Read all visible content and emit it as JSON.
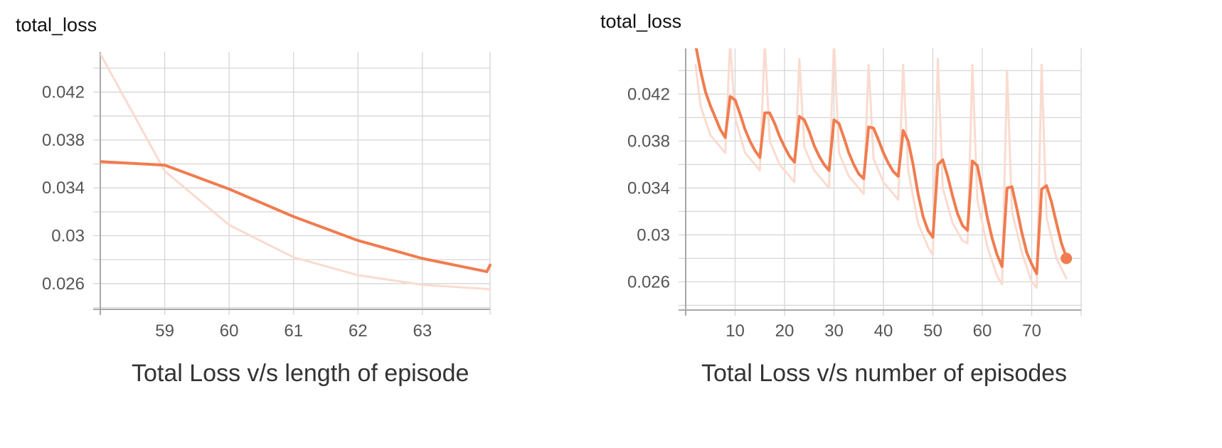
{
  "chart_data": [
    {
      "type": "line",
      "title": "total_loss",
      "caption": "Total Loss v/s length of episode",
      "xlabel": "",
      "ylabel": "",
      "xlim": [
        58,
        64.05
      ],
      "ylim": [
        0.02385,
        0.04536
      ],
      "x_ticks": [
        59,
        60,
        61,
        62,
        63
      ],
      "x_tick_labels": [
        "59",
        "60",
        "61",
        "62",
        "63"
      ],
      "y_ticks": [
        0.026,
        0.03,
        0.034,
        0.038,
        0.042
      ],
      "y_tick_labels": [
        "0.026",
        "0.03",
        "0.034",
        "0.038",
        "0.042"
      ],
      "grid": true,
      "colors": {
        "smoothed": "#f07c4f",
        "raw": "#fadbd0",
        "grid": "#d6d6d6",
        "axis": "#a8a8a8"
      },
      "series": [
        {
          "role": "raw",
          "x": [
            58,
            59,
            60,
            61,
            62,
            63,
            64,
            64.05
          ],
          "y": [
            0.0452,
            0.0354,
            0.0309,
            0.0282,
            0.0267,
            0.0259,
            0.02555,
            0.0255
          ]
        },
        {
          "role": "smoothed",
          "x": [
            58,
            59,
            60,
            61,
            62,
            63,
            64,
            64.05
          ],
          "y": [
            0.0362,
            0.0359,
            0.0339,
            0.0316,
            0.0296,
            0.0281,
            0.027,
            0.02755
          ]
        }
      ]
    },
    {
      "type": "line",
      "title": "total_loss",
      "caption": "Total Loss v/s number of episodes",
      "xlabel": "",
      "ylabel": "",
      "xlim": [
        0,
        80
      ],
      "ylim": [
        0.0236,
        0.0459
      ],
      "x_ticks": [
        10,
        20,
        30,
        40,
        50,
        60,
        70
      ],
      "x_tick_labels": [
        "10",
        "20",
        "30",
        "40",
        "50",
        "60",
        "70"
      ],
      "y_ticks": [
        0.026,
        0.03,
        0.034,
        0.038,
        0.042
      ],
      "y_tick_labels": [
        "0.026",
        "0.03",
        "0.034",
        "0.038",
        "0.042"
      ],
      "grid": true,
      "colors": {
        "smoothed": "#f07c4f",
        "raw": "#fadbd0",
        "grid": "#d6d6d6",
        "axis": "#a8a8a8"
      },
      "end_marker": {
        "x": 77,
        "y": 0.028
      },
      "series": [
        {
          "role": "raw",
          "x": [
            2,
            3,
            5,
            7,
            8,
            9,
            10,
            12,
            14,
            15,
            16,
            17,
            19,
            21,
            22,
            23,
            24,
            26,
            28,
            29,
            30,
            31,
            33,
            35,
            36,
            37,
            38,
            40,
            42,
            43,
            44,
            45,
            47,
            49,
            50,
            51,
            52,
            54,
            56,
            57,
            58,
            59,
            61,
            63,
            64,
            65,
            66,
            68,
            70,
            71,
            72,
            73,
            75,
            77
          ],
          "y": [
            0.0445,
            0.041,
            0.0385,
            0.0375,
            0.037,
            0.0465,
            0.04,
            0.037,
            0.036,
            0.0355,
            0.0465,
            0.038,
            0.036,
            0.035,
            0.0345,
            0.045,
            0.0375,
            0.0355,
            0.0345,
            0.034,
            0.0465,
            0.037,
            0.035,
            0.034,
            0.0335,
            0.0445,
            0.0365,
            0.0345,
            0.0335,
            0.033,
            0.0445,
            0.0355,
            0.031,
            0.029,
            0.0283,
            0.045,
            0.034,
            0.031,
            0.0295,
            0.0293,
            0.0445,
            0.033,
            0.029,
            0.0265,
            0.0258,
            0.044,
            0.032,
            0.0285,
            0.026,
            0.0255,
            0.0445,
            0.0315,
            0.028,
            0.0263
          ]
        },
        {
          "role": "smoothed",
          "x": [
            2,
            3,
            4,
            5,
            6,
            7,
            8,
            9,
            10,
            11,
            12,
            13,
            14,
            15,
            16,
            17,
            18,
            19,
            20,
            21,
            22,
            23,
            24,
            25,
            26,
            27,
            28,
            29,
            30,
            31,
            32,
            33,
            34,
            35,
            36,
            37,
            38,
            39,
            40,
            41,
            42,
            43,
            44,
            45,
            46,
            47,
            48,
            49,
            50,
            51,
            52,
            53,
            54,
            55,
            56,
            57,
            58,
            59,
            60,
            61,
            62,
            63,
            64,
            65,
            66,
            67,
            68,
            69,
            70,
            71,
            72,
            73,
            74,
            75,
            76,
            77
          ],
          "y": [
            0.0462,
            0.044,
            0.0422,
            0.041,
            0.04,
            0.039,
            0.0383,
            0.0418,
            0.0415,
            0.0403,
            0.039,
            0.038,
            0.0372,
            0.0366,
            0.0404,
            0.0404,
            0.0395,
            0.0384,
            0.0375,
            0.0367,
            0.0362,
            0.0401,
            0.0398,
            0.0388,
            0.0376,
            0.0367,
            0.036,
            0.0355,
            0.0398,
            0.0395,
            0.0383,
            0.037,
            0.036,
            0.0352,
            0.0348,
            0.0392,
            0.0391,
            0.0381,
            0.037,
            0.0361,
            0.0354,
            0.035,
            0.0389,
            0.038,
            0.036,
            0.0335,
            0.0316,
            0.0304,
            0.0298,
            0.036,
            0.0364,
            0.035,
            0.0333,
            0.0318,
            0.0308,
            0.0304,
            0.0363,
            0.0359,
            0.0338,
            0.0315,
            0.0297,
            0.0283,
            0.0273,
            0.034,
            0.0341,
            0.0322,
            0.0302,
            0.0285,
            0.0275,
            0.0267,
            0.0339,
            0.0342,
            0.0328,
            0.031,
            0.0293,
            0.0281
          ]
        }
      ]
    }
  ]
}
